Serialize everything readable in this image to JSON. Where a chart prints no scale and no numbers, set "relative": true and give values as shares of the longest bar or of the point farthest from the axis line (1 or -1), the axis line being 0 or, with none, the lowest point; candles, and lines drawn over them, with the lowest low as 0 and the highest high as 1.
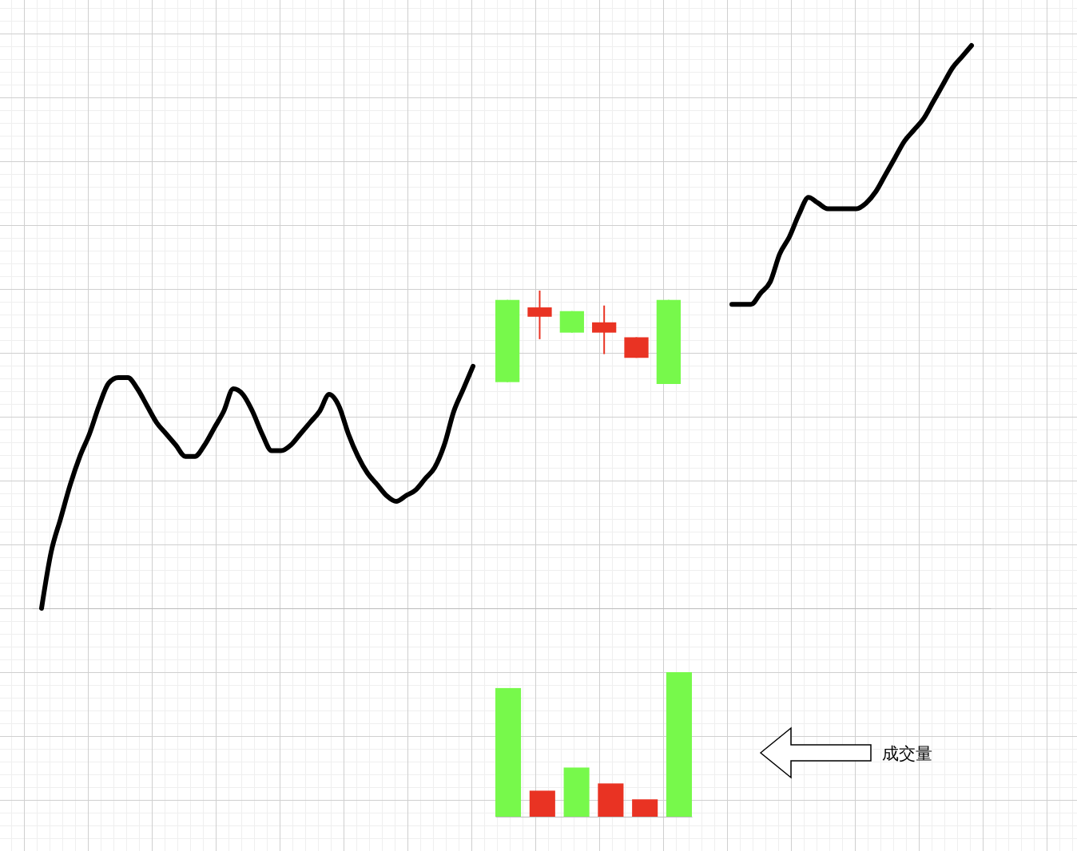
{
  "chart_data": [
    {
      "type": "line",
      "relative": true,
      "categories": [
        null,
        null,
        null,
        null,
        null,
        null,
        null,
        null,
        null,
        null,
        null,
        null,
        null,
        null,
        null,
        null,
        null,
        null,
        null,
        null,
        null,
        null,
        null,
        null,
        null,
        null,
        null,
        null,
        null,
        null,
        null,
        null,
        null,
        null,
        null,
        null,
        null,
        null,
        null,
        null,
        null,
        null,
        null,
        null,
        null,
        null,
        null,
        null,
        null,
        null,
        null,
        null,
        null,
        null,
        null,
        null,
        null,
        null,
        null,
        null,
        null,
        null,
        null,
        null,
        null,
        null,
        null,
        null,
        null,
        null,
        null,
        null,
        null,
        null,
        null,
        null,
        null,
        null,
        null,
        null,
        null,
        null,
        null,
        null,
        null,
        null,
        null,
        null,
        null,
        null,
        null,
        null,
        null,
        null,
        null,
        null,
        null,
        null,
        null,
        null,
        null
      ],
      "series": [
        {
          "color": "#000000",
          "values": [
            null,
            0,
            0.1,
            0.16,
            0.22,
            0.27,
            0.31,
            0.36,
            0.4,
            0.41,
            0.41,
            0.39,
            0.36,
            0.33,
            0.31,
            0.29,
            0.27,
            0.27,
            0.29,
            0.32,
            0.35,
            0.39,
            0.38,
            0.35,
            0.31,
            0.28,
            0.28,
            0.29,
            0.31,
            0.33,
            0.35,
            0.38,
            0.36,
            0.31,
            0.27,
            0.24,
            0.22,
            0.2,
            0.19,
            0.2,
            0.21,
            0.23,
            0.25,
            0.29,
            0.35,
            0.39,
            0.43,
            null,
            null,
            null,
            null,
            null,
            null,
            null,
            null,
            null,
            null,
            null,
            null,
            null,
            null,
            null,
            null,
            null,
            null,
            null,
            null,
            null,
            null,
            null,
            null,
            null,
            null,
            null,
            null,
            null,
            null,
            null,
            null,
            null,
            null,
            null,
            null,
            null,
            null,
            null,
            null,
            null,
            null,
            null,
            null,
            null,
            null,
            null,
            null,
            null,
            null,
            null,
            null,
            null,
            null
          ]
        },
        {
          "color": "#000000",
          "values": [
            null,
            null,
            null,
            null,
            null,
            null,
            null,
            null,
            null,
            null,
            null,
            null,
            null,
            null,
            null,
            null,
            null,
            null,
            null,
            null,
            null,
            null,
            null,
            null,
            null,
            null,
            null,
            null,
            null,
            null,
            null,
            null,
            null,
            null,
            null,
            null,
            null,
            null,
            null,
            null,
            null,
            null,
            null,
            null,
            null,
            null,
            null,
            null,
            null,
            null,
            null,
            null,
            null,
            null,
            null,
            null,
            null,
            null,
            null,
            null,
            null,
            null,
            null,
            null,
            null,
            null,
            null,
            null,
            null,
            null,
            null,
            null,
            null,
            0.54,
            0.54,
            0.54,
            0.56,
            0.58,
            0.63,
            0.66,
            0.7,
            0.73,
            0.72,
            0.71,
            0.71,
            0.71,
            0.71,
            0.72,
            0.74,
            0.77,
            0.8,
            0.83,
            0.85,
            0.87,
            0.9,
            0.93,
            0.96,
            0.98,
            1,
            null,
            null
          ]
        }
      ]
    },
    {
      "type": "candlestick",
      "relative": true,
      "categories": [
        null,
        null,
        null,
        null,
        null,
        null
      ],
      "ohlc": [
        [
          0.9,
          0.9,
          0.02,
          0.02
        ],
        [
          0.72,
          1,
          0.48,
          0.82
        ],
        [
          0.78,
          0.78,
          0.55,
          0.55
        ],
        [
          0.55,
          0.84,
          0.32,
          0.66
        ],
        [
          0.28,
          0.5,
          0.28,
          0.5
        ],
        [
          0.9,
          0.9,
          0,
          0
        ]
      ],
      "colors": [
        "#77f94b",
        "#e93323",
        "#77f94b",
        "#e93323",
        "#e93323",
        "#77f94b"
      ]
    },
    {
      "type": "bar",
      "relative": true,
      "categories": [
        null,
        null,
        null,
        null,
        null,
        null
      ],
      "values": [
        0.89,
        0.18,
        0.34,
        0.23,
        0.12,
        1
      ],
      "colors": [
        "#77f94b",
        "#e93323",
        "#77f94b",
        "#e93323",
        "#e93323",
        "#77f94b"
      ],
      "annotations": [
        "成交量"
      ]
    }
  ]
}
